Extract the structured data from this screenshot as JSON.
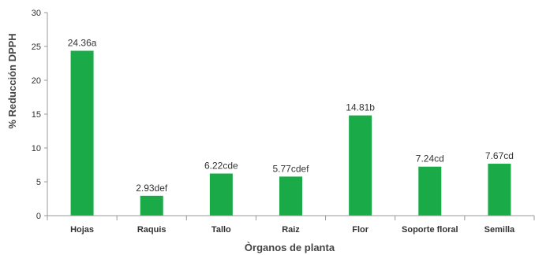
{
  "chart_data": {
    "type": "bar",
    "title": "",
    "xlabel": "Òrganos de planta",
    "ylabel": "% Reducción DPPH",
    "ylim": [
      0,
      30
    ],
    "yticks": [
      0,
      5,
      10,
      15,
      20,
      25,
      30
    ],
    "grid": false,
    "categories": [
      "Hojas",
      "Raquis",
      "Tallo",
      "Raiz",
      "Flor",
      "Soporte floral",
      "Semilla"
    ],
    "values": [
      24.36,
      2.93,
      6.22,
      5.77,
      14.81,
      7.24,
      7.67
    ],
    "data_labels": [
      "24.36a",
      "2.93def",
      "6.22cde",
      "5.77cdef",
      "14.81b",
      "7.24cd",
      "7.67cd"
    ],
    "bar_color": "#1aaa48",
    "axis_color": "#999999"
  }
}
